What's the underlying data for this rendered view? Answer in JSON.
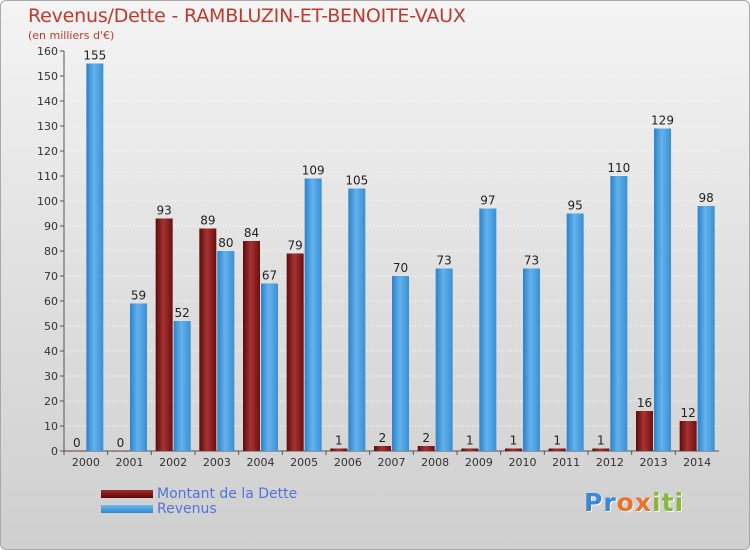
{
  "header": {
    "title": "Revenus/Dette - RAMBLUZIN-ET-BENOITE-VAUX",
    "subtitle": "(en milliers d'€)"
  },
  "brand": {
    "text": "Proxiti"
  },
  "colors": {
    "debt": "#8b1a1a",
    "revenue": "#3d9ae0",
    "axis_text": "#333333",
    "title": "#c0392b",
    "legend_text": "#4f74d8"
  },
  "chart_data": {
    "type": "bar",
    "title": "Revenus/Dette - RAMBLUZIN-ET-BENOITE-VAUX",
    "subtitle": "(en milliers d'€)",
    "xlabel": "",
    "ylabel": "",
    "ylim": [
      0,
      160
    ],
    "yticks": [
      0,
      10,
      20,
      30,
      40,
      50,
      60,
      70,
      80,
      90,
      100,
      110,
      120,
      130,
      140,
      150,
      160
    ],
    "grid": true,
    "legend_position": "bottom-left",
    "categories": [
      "2000",
      "2001",
      "2002",
      "2003",
      "2004",
      "2005",
      "2006",
      "2007",
      "2008",
      "2009",
      "2010",
      "2011",
      "2012",
      "2013",
      "2014"
    ],
    "series": [
      {
        "name": "Montant de la Dette",
        "values": [
          0,
          0,
          93,
          89,
          84,
          79,
          1,
          2,
          2,
          1,
          1,
          1,
          1,
          16,
          12
        ]
      },
      {
        "name": "Revenus",
        "values": [
          155,
          59,
          52,
          80,
          67,
          109,
          105,
          70,
          73,
          97,
          73,
          95,
          110,
          129,
          98
        ]
      }
    ]
  }
}
